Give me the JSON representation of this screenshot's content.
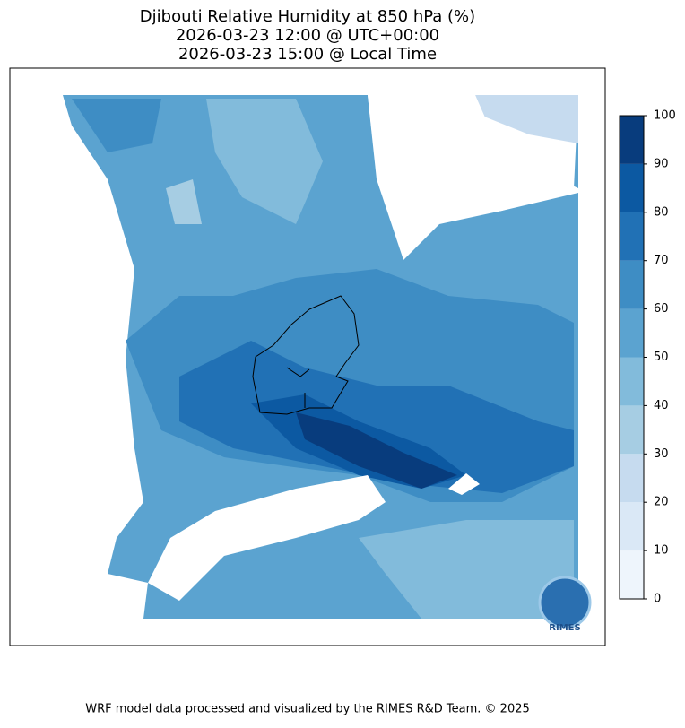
{
  "header": {
    "title_lines": [
      "Djibouti Relative Humidity at 850 hPa (%)",
      "2026-03-23 12:00 @ UTC+00:00",
      "2026-03-23 15:00 @ Local Time"
    ]
  },
  "colorbar": {
    "ticks": [
      0,
      10,
      20,
      30,
      40,
      50,
      60,
      70,
      80,
      90,
      100
    ],
    "colors": [
      "#eef5fc",
      "#dae8f6",
      "#c6dbef",
      "#a6cde3",
      "#82bbdb",
      "#5ba3d0",
      "#3e8dc4",
      "#2171b5",
      "#0c59a2",
      "#083c7d"
    ]
  },
  "logo": "RIMES",
  "footer": "WRF model data processed and visualized by the RIMES R&D Team. © 2025"
}
